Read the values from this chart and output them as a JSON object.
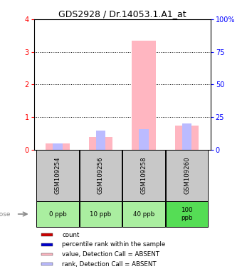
{
  "title": "GDS2928 / Dr.14053.1.A1_at",
  "samples": [
    "GSM109254",
    "GSM109256",
    "GSM109258",
    "GSM109260"
  ],
  "doses": [
    "0 ppb",
    "10 ppb",
    "40 ppb",
    "100\nppb"
  ],
  "pink_bars": [
    0.2,
    0.4,
    3.35,
    0.75
  ],
  "blue_bars": [
    5.0,
    15.0,
    16.0,
    20.0
  ],
  "ylim_left": [
    0,
    4
  ],
  "ylim_right": [
    0,
    100
  ],
  "yticks_left": [
    0,
    1,
    2,
    3,
    4
  ],
  "yticks_right": [
    0,
    25,
    50,
    75,
    100
  ],
  "color_pink": "#FFB6C1",
  "color_blue_light": "#BBBBFF",
  "color_red": "#CC0000",
  "color_blue_dark": "#0000CC",
  "color_gray_bg": "#C8C8C8",
  "color_green_light": "#AAEEA0",
  "color_green_dark": "#55DD55",
  "legend_items": [
    {
      "color": "#CC0000",
      "label": "count"
    },
    {
      "color": "#0000CC",
      "label": "percentile rank within the sample"
    },
    {
      "color": "#FFB6C1",
      "label": "value, Detection Call = ABSENT"
    },
    {
      "color": "#BBBBFF",
      "label": "rank, Detection Call = ABSENT"
    }
  ],
  "bar_width": 0.55,
  "title_fontsize": 9,
  "tick_fontsize": 7,
  "label_fontsize": 7,
  "dose_colors": [
    "#AAEEA0",
    "#AAEEA0",
    "#AAEEA0",
    "#55DD55"
  ]
}
